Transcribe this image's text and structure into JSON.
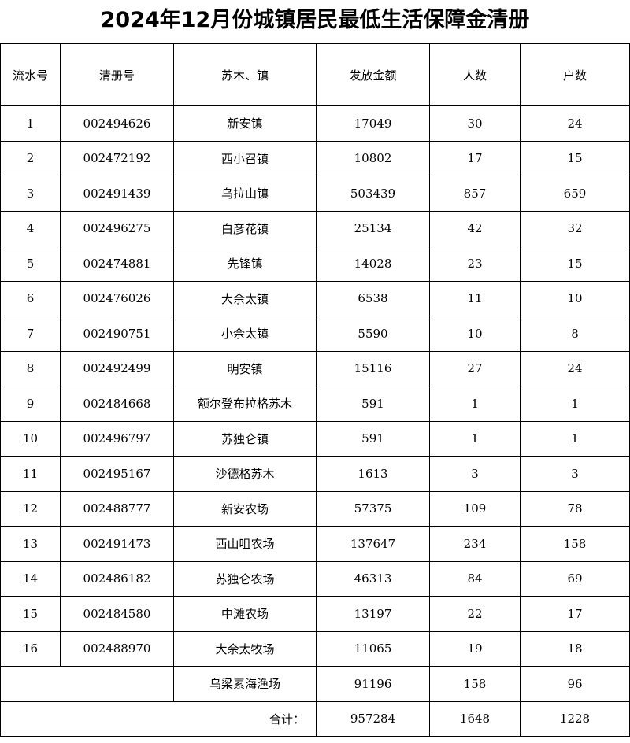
{
  "title": "2024年12月份城镇居民最低生活保障金清册",
  "headers": [
    "流水号",
    "清册号",
    "苏木、镇",
    "发放金额",
    "人数",
    "户数"
  ],
  "rows": [
    {
      "no": "1",
      "id": "002494626",
      "town": "新安镇",
      "amount": "17049",
      "people": "30",
      "households": "24"
    },
    {
      "no": "2",
      "id": "002472192",
      "town": "西小召镇",
      "amount": "10802",
      "people": "17",
      "households": "15"
    },
    {
      "no": "3",
      "id": "002491439",
      "town": "乌拉山镇",
      "amount": "503439",
      "people": "857",
      "households": "659"
    },
    {
      "no": "4",
      "id": "002496275",
      "town": "白彦花镇",
      "amount": "25134",
      "people": "42",
      "households": "32"
    },
    {
      "no": "5",
      "id": "002474881",
      "town": "先锋镇",
      "amount": "14028",
      "people": "23",
      "households": "15"
    },
    {
      "no": "6",
      "id": "002476026",
      "town": "大佘太镇",
      "amount": "6538",
      "people": "11",
      "households": "10"
    },
    {
      "no": "7",
      "id": "002490751",
      "town": "小佘太镇",
      "amount": "5590",
      "people": "10",
      "households": "8"
    },
    {
      "no": "8",
      "id": "002492499",
      "town": "明安镇",
      "amount": "15116",
      "people": "27",
      "households": "24"
    },
    {
      "no": "9",
      "id": "002484668",
      "town": "额尔登布拉格苏木",
      "amount": "591",
      "people": "1",
      "households": "1"
    },
    {
      "no": "10",
      "id": "002496797",
      "town": "苏独仑镇",
      "amount": "591",
      "people": "1",
      "households": "1"
    },
    {
      "no": "11",
      "id": "002495167",
      "town": "沙德格苏木",
      "amount": "1613",
      "people": "3",
      "households": "3"
    },
    {
      "no": "12",
      "id": "002488777",
      "town": "新安农场",
      "amount": "57375",
      "people": "109",
      "households": "78"
    },
    {
      "no": "13",
      "id": "002491473",
      "town": "西山咀农场",
      "amount": "137647",
      "people": "234",
      "households": "158"
    },
    {
      "no": "14",
      "id": "002486182",
      "town": "苏独仑农场",
      "amount": "46313",
      "people": "84",
      "households": "69"
    },
    {
      "no": "15",
      "id": "002484580",
      "town": "中滩农场",
      "amount": "13197",
      "people": "22",
      "households": "17"
    },
    {
      "no": "16",
      "id": "002488970",
      "town": "大佘太牧场",
      "amount": "11065",
      "people": "19",
      "households": "18"
    }
  ],
  "extra_row": {
    "town": "乌梁素海渔场",
    "amount": "91196",
    "people": "158",
    "households": "96"
  },
  "total": {
    "label": "合计：",
    "amount": "957284",
    "people": "1648",
    "households": "1228"
  }
}
